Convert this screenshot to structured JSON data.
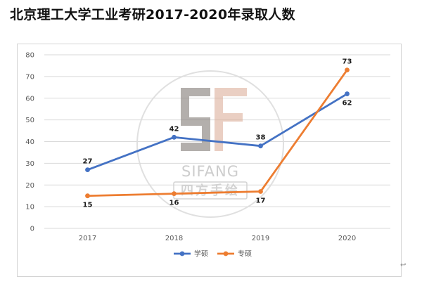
{
  "page_title": "北京理工大学工业考研2017-2020年录取人数",
  "colors": {
    "xueshuo": "#4472c4",
    "zhuanshuo": "#ed7d31",
    "grid": "#d9d9d9",
    "watermark": "#c8c8c8"
  },
  "watermark": {
    "logo_text": "SIFANG",
    "seal_text": "四方手绘"
  },
  "corner_mark": "↩",
  "chart_data": {
    "type": "line",
    "title": "",
    "xlabel": "",
    "ylabel": "",
    "categories": [
      "2017",
      "2018",
      "2019",
      "2020"
    ],
    "ylim": [
      0,
      80
    ],
    "yticks": [
      "0",
      "10",
      "20",
      "30",
      "40",
      "50",
      "60",
      "70",
      "80"
    ],
    "grid": true,
    "legend_position": "bottom",
    "series": [
      {
        "name": "学硕",
        "values": [
          27,
          42,
          38,
          62
        ],
        "color": "#4472c4"
      },
      {
        "name": "专硕",
        "values": [
          15,
          16,
          17,
          73
        ],
        "color": "#ed7d31"
      }
    ]
  }
}
